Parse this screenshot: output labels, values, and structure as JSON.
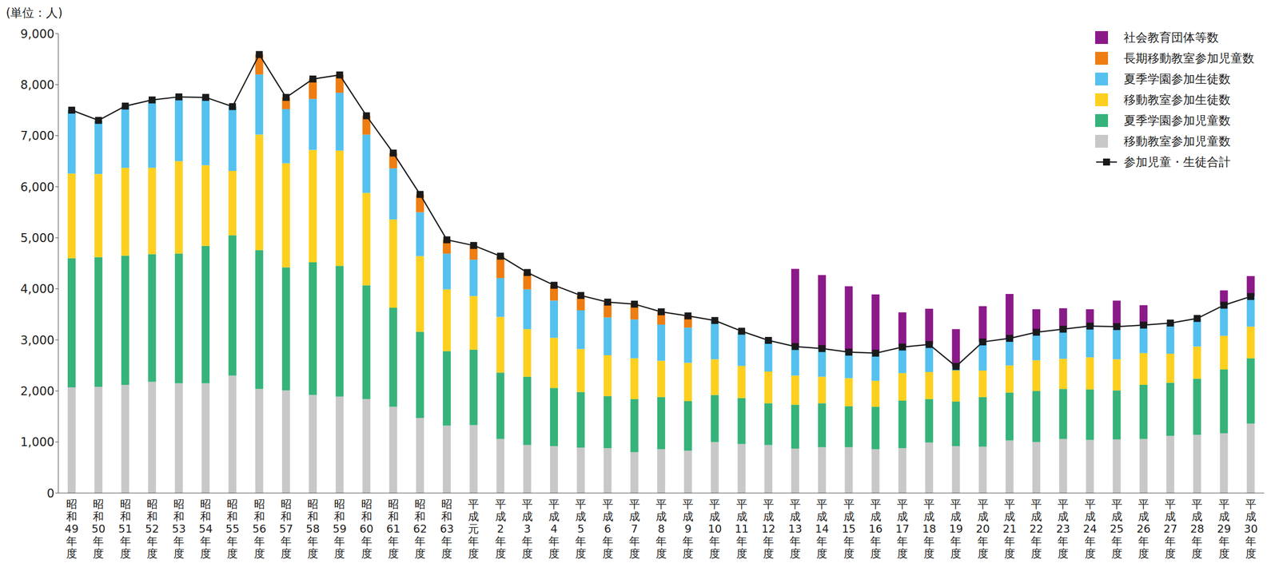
{
  "chart_data": {
    "type": "bar",
    "stacked": true,
    "grid": false,
    "legend": "upper right",
    "y_label": "(単位：人)",
    "categories": [
      "昭和49年度",
      "昭和50年度",
      "昭和51年度",
      "昭和52年度",
      "昭和53年度",
      "昭和54年度",
      "昭和55年度",
      "昭和56年度",
      "昭和57年度",
      "昭和58年度",
      "昭和59年度",
      "昭和60年度",
      "昭和61年度",
      "昭和62年度",
      "昭和63年度",
      "平成元年度",
      "平成2年度",
      "平成3年度",
      "平成4年度",
      "平成5年度",
      "平成6年度",
      "平成7年度",
      "平成8年度",
      "平成9年度",
      "平成10年度",
      "平成11年度",
      "平成12年度",
      "平成13年度",
      "平成14年度",
      "平成15年度",
      "平成16年度",
      "平成17年度",
      "平成18年度",
      "平成19年度",
      "平成20年度",
      "平成21年度",
      "平成22年度",
      "平成23年度",
      "平成24年度",
      "平成25年度",
      "平成26年度",
      "平成27年度",
      "平成28年度",
      "平成29年度",
      "平成30年度"
    ],
    "ylim": [
      0,
      9000
    ],
    "yticks": [
      0,
      {
        "value": 1000,
        "label": "1,000"
      },
      {
        "value": 2000,
        "label": "2,000"
      },
      {
        "value": 3000,
        "label": "3,000"
      },
      {
        "value": 4000,
        "label": "4,000"
      },
      {
        "value": 5000,
        "label": "5,000"
      },
      {
        "value": 6000,
        "label": "6,000"
      },
      {
        "value": 7000,
        "label": "7,000"
      },
      {
        "value": 8000,
        "label": "8,000"
      },
      {
        "value": 9000,
        "label": "9,000"
      }
    ],
    "series": [
      {
        "name": "移動教室参加児童数",
        "color": "#c8c8c8",
        "values": [
          2070,
          2080,
          2120,
          2180,
          2150,
          2150,
          2300,
          2040,
          2010,
          1920,
          1890,
          1840,
          1690,
          1470,
          1320,
          1330,
          1060,
          940,
          920,
          890,
          880,
          800,
          860,
          830,
          1000,
          960,
          940,
          870,
          900,
          900,
          860,
          880,
          990,
          920,
          910,
          1030,
          1000,
          1060,
          1040,
          1050,
          1060,
          1120,
          1140,
          1170,
          1360
        ]
      },
      {
        "name": "夏季学園参加児童数",
        "color": "#36b37a",
        "values": [
          2530,
          2540,
          2530,
          2500,
          2540,
          2690,
          2750,
          2720,
          2410,
          2600,
          2560,
          2230,
          1940,
          1690,
          1460,
          1480,
          1300,
          1340,
          1140,
          1090,
          1020,
          1040,
          1020,
          970,
          920,
          900,
          820,
          860,
          860,
          800,
          830,
          930,
          850,
          870,
          970,
          940,
          1000,
          980,
          990,
          960,
          1060,
          1040,
          1100,
          1250,
          1280
        ]
      },
      {
        "name": "移動教室参加生徒数",
        "color": "#fdd020",
        "values": [
          1660,
          1630,
          1720,
          1690,
          1810,
          1580,
          1260,
          2260,
          2040,
          2200,
          2260,
          1810,
          1730,
          1480,
          1210,
          1050,
          1090,
          930,
          980,
          840,
          800,
          800,
          710,
          750,
          700,
          630,
          620,
          570,
          520,
          550,
          510,
          540,
          530,
          610,
          520,
          530,
          600,
          590,
          630,
          610,
          620,
          570,
          630,
          660,
          620
        ]
      },
      {
        "name": "夏季学園参加生徒数",
        "color": "#55c1ef",
        "values": [
          1240,
          1050,
          1210,
          1330,
          1260,
          1330,
          1260,
          1180,
          1060,
          1000,
          1130,
          1140,
          1000,
          860,
          700,
          710,
          760,
          780,
          730,
          760,
          740,
          760,
          710,
          690,
          760,
          680,
          610,
          570,
          550,
          510,
          540,
          510,
          540,
          80,
          560,
          530,
          550,
          580,
          610,
          640,
          550,
          600,
          550,
          600,
          590
        ]
      },
      {
        "name": "長期移動教室参加児童数",
        "color": "#ee7d12",
        "values": [
          0,
          0,
          0,
          0,
          0,
          0,
          0,
          390,
          230,
          390,
          350,
          370,
          300,
          350,
          270,
          280,
          430,
          330,
          300,
          290,
          300,
          300,
          250,
          230,
          0,
          0,
          0,
          0,
          0,
          0,
          0,
          0,
          0,
          0,
          0,
          0,
          0,
          0,
          0,
          0,
          0,
          0,
          0,
          0,
          0
        ]
      },
      {
        "name": "社会教育団体等数",
        "color": "#8b1a89",
        "values": [
          0,
          0,
          0,
          0,
          0,
          0,
          0,
          0,
          0,
          0,
          0,
          0,
          0,
          0,
          0,
          0,
          0,
          0,
          0,
          0,
          0,
          0,
          0,
          0,
          0,
          0,
          0,
          1520,
          1440,
          1290,
          1150,
          680,
          700,
          730,
          700,
          870,
          450,
          410,
          330,
          510,
          390,
          0,
          0,
          290,
          400
        ]
      },
      {
        "name": "参加児童・生徒合計",
        "type": "line",
        "marker": "square",
        "color": "#1a1a1a",
        "values": [
          7500,
          7300,
          7580,
          7700,
          7760,
          7750,
          7570,
          8590,
          7750,
          8110,
          8190,
          7390,
          6660,
          5850,
          4960,
          4850,
          4640,
          4320,
          4070,
          3870,
          3740,
          3700,
          3550,
          3470,
          3380,
          3170,
          2990,
          2870,
          2830,
          2760,
          2740,
          2860,
          2910,
          2480,
          2960,
          3030,
          3150,
          3210,
          3270,
          3260,
          3290,
          3330,
          3420,
          3680,
          3850
        ]
      }
    ]
  }
}
